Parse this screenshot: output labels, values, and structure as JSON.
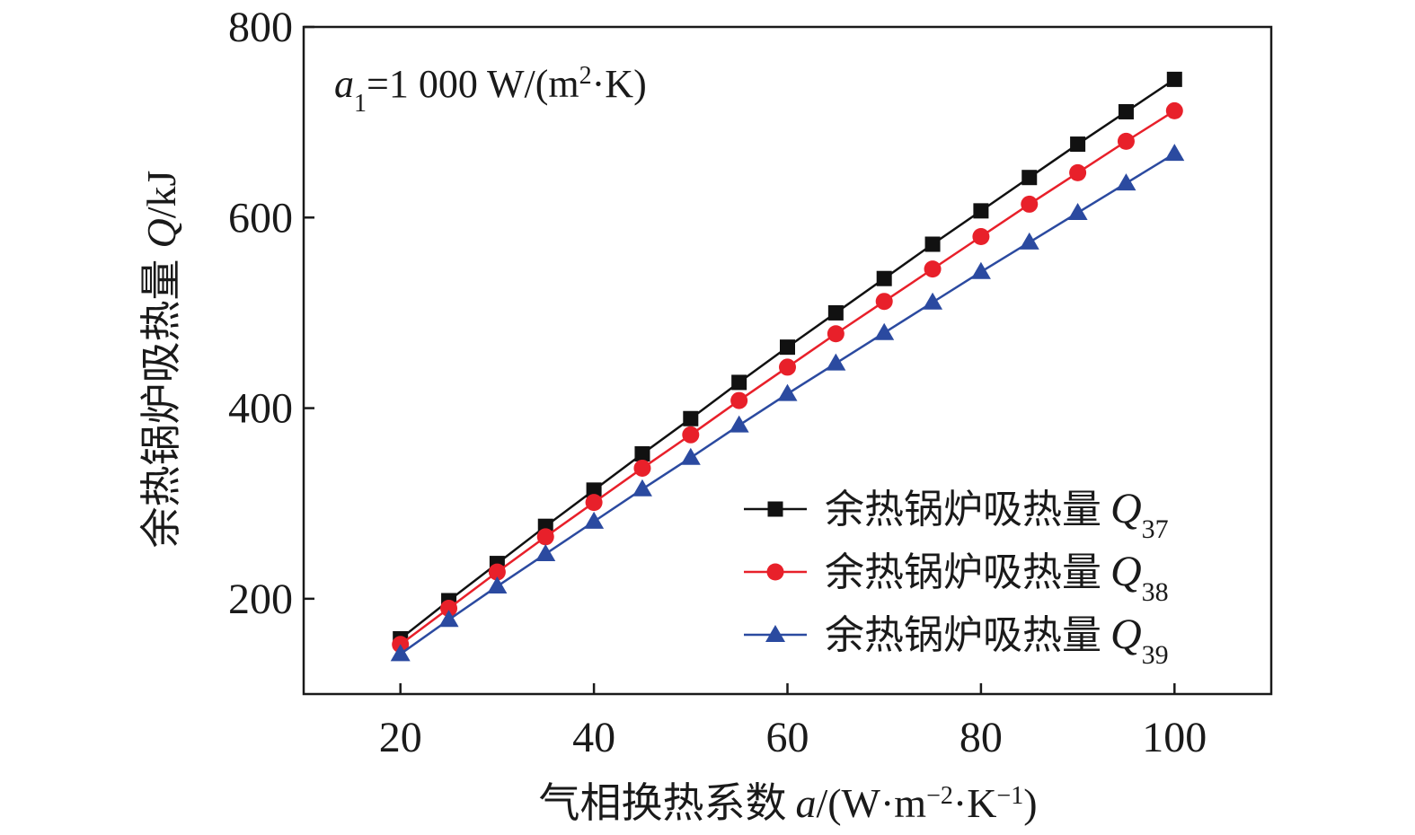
{
  "chart_data": {
    "type": "line",
    "x": [
      20,
      25,
      30,
      35,
      40,
      45,
      50,
      55,
      60,
      65,
      70,
      75,
      80,
      85,
      90,
      95,
      100
    ],
    "series": [
      {
        "name_cn": "余热锅炉吸热量",
        "name_var": "Q",
        "name_sub": "37",
        "color": "#111111",
        "marker": "square",
        "values": [
          158,
          198,
          237,
          276,
          314,
          352,
          389,
          427,
          464,
          500,
          536,
          572,
          607,
          642,
          677,
          711,
          745
        ]
      },
      {
        "name_cn": "余热锅炉吸热量",
        "name_var": "Q",
        "name_sub": "38",
        "color": "#e8202a",
        "marker": "circle",
        "values": [
          152,
          190,
          228,
          265,
          301,
          337,
          372,
          408,
          443,
          478,
          512,
          546,
          580,
          614,
          647,
          680,
          712
        ]
      },
      {
        "name_cn": "余热锅炉吸热量",
        "name_var": "Q",
        "name_sub": "39",
        "color": "#2b4aa0",
        "marker": "triangle",
        "values": [
          142,
          178,
          213,
          247,
          281,
          315,
          348,
          382,
          415,
          447,
          479,
          511,
          543,
          574,
          605,
          636,
          667
        ]
      }
    ],
    "xlim": [
      10,
      110
    ],
    "ylim": [
      100,
      800
    ],
    "xticks": [
      20,
      40,
      60,
      80,
      100
    ],
    "yticks": [
      200,
      400,
      600,
      800
    ],
    "xlabel": {
      "cn": "气相换热系数",
      "var": "a",
      "unit_open": "/(W·m",
      "exp1": "−2",
      "mid": "·K",
      "exp2": "−1",
      "close": ")"
    },
    "ylabel": {
      "cn": "余热锅炉吸热量",
      "var": "Q",
      "unit": "/kJ"
    },
    "annotation": {
      "var": "a",
      "sub": "1",
      "eq": "=1 000 W/(m",
      "sup": "2",
      "tail": "·K)"
    },
    "legend_position": "lower-right",
    "grid": false
  }
}
